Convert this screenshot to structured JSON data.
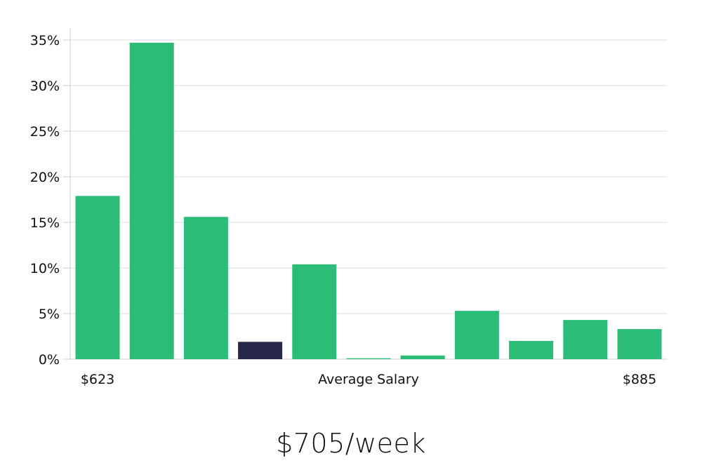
{
  "chart_data": {
    "type": "bar",
    "values": [
      17.9,
      34.7,
      15.6,
      1.9,
      10.4,
      0.1,
      0.4,
      5.3,
      2.0,
      4.3,
      3.3
    ],
    "highlight_index": 3,
    "ylim": [
      0,
      35
    ],
    "yticks": [
      0,
      5,
      10,
      15,
      20,
      25,
      30,
      35
    ],
    "ytick_suffix": "%",
    "grid": true,
    "xlabel_left": "$623",
    "xlabel_center": "Average Salary",
    "xlabel_right": "$885",
    "colors": {
      "bar": "#2bbd77",
      "highlight": "#26264a",
      "grid": "#dddddd",
      "axis": "#cccccc"
    }
  },
  "salary": "$705/week"
}
